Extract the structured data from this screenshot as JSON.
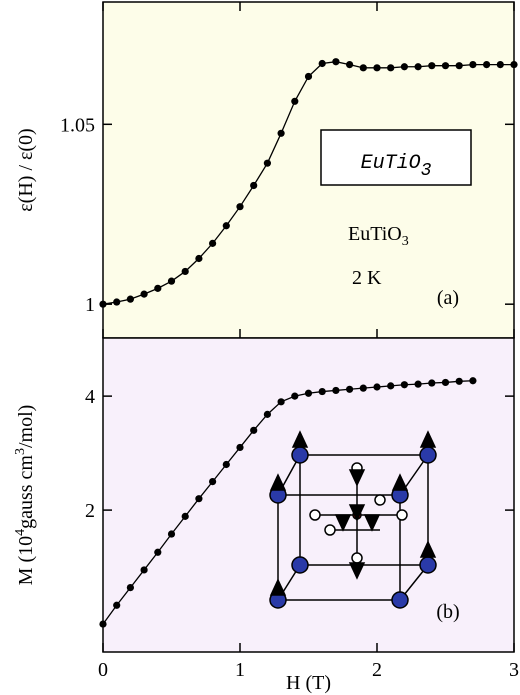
{
  "chart_data": [
    {
      "type": "line",
      "ylabel": "ε(H) / ε(0)",
      "background": "#fdfde9",
      "color": "#000000",
      "xlim": [
        0,
        3
      ],
      "ylim": [
        0.9906,
        1.084
      ],
      "yticks": [
        1,
        1.05
      ],
      "x": [
        0,
        0.1,
        0.2,
        0.3,
        0.4,
        0.5,
        0.6,
        0.7,
        0.8,
        0.9,
        1.0,
        1.1,
        1.2,
        1.3,
        1.4,
        1.5,
        1.6,
        1.7,
        1.8,
        1.9,
        2.0,
        2.1,
        2.2,
        2.3,
        2.4,
        2.5,
        2.6,
        2.7,
        2.8,
        2.9,
        3.0
      ],
      "values": [
        1.0,
        1.0006,
        1.0014,
        1.0028,
        1.0044,
        1.0064,
        1.0091,
        1.0127,
        1.0169,
        1.0218,
        1.0271,
        1.033,
        1.0392,
        1.0475,
        1.0564,
        1.0633,
        1.0669,
        1.0674,
        1.0666,
        1.0657,
        1.0657,
        1.0657,
        1.066,
        1.066,
        1.0663,
        1.0663,
        1.0663,
        1.0666,
        1.0666,
        1.0666,
        1.0666
      ],
      "box_label": [
        "EuTiO",
        "3"
      ],
      "compound": [
        "EuTiO",
        "3"
      ],
      "temperature": "2 K",
      "panel": "(a)"
    },
    {
      "type": "line",
      "ylabel": [
        "M (10",
        "4",
        "gauss cm",
        "3",
        "/mol)"
      ],
      "background": "#f8f0fb",
      "color": "#000000",
      "xlabel": "H (T)",
      "xlim": [
        0,
        3
      ],
      "ylim": [
        -0.49,
        5.02
      ],
      "xticks": [
        0,
        1,
        2,
        3
      ],
      "yticks": [
        2,
        4
      ],
      "x": [
        0,
        0.1,
        0.2,
        0.3,
        0.4,
        0.5,
        0.6,
        0.7,
        0.8,
        0.9,
        1.0,
        1.1,
        1.2,
        1.3,
        1.4,
        1.5,
        1.6,
        1.7,
        1.8,
        1.9,
        2.0,
        2.1,
        2.2,
        2.3,
        2.4,
        2.5,
        2.6,
        2.7
      ],
      "values": [
        0.0,
        0.33,
        0.64,
        0.95,
        1.26,
        1.58,
        1.89,
        2.2,
        2.5,
        2.8,
        3.1,
        3.4,
        3.68,
        3.9,
        4.0,
        4.05,
        4.08,
        4.1,
        4.12,
        4.14,
        4.16,
        4.18,
        4.2,
        4.21,
        4.23,
        4.24,
        4.26,
        4.27
      ],
      "panel": "(b)"
    }
  ]
}
